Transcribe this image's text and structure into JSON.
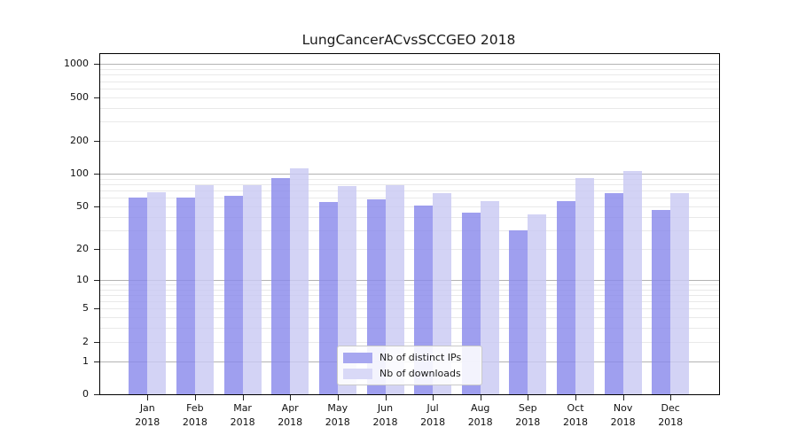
{
  "figure": {
    "title": "LungCancerACvsSCCGEO 2018"
  },
  "legend": {
    "items": [
      {
        "label": "Nb of distinct IPs",
        "color": "#a7a7f0"
      },
      {
        "label": "Nb of downloads",
        "color": "#d9d9f7"
      }
    ]
  },
  "chart_data": {
    "type": "bar",
    "title": "LungCancerACvsSCCGEO 2018",
    "categories": [
      "Jan",
      "Feb",
      "Mar",
      "Apr",
      "May",
      "Jun",
      "Jul",
      "Aug",
      "Sep",
      "Oct",
      "Nov",
      "Dec"
    ],
    "x_tick_year": "2018",
    "series": [
      {
        "name": "Nb of distinct IPs",
        "color": "#a7a7f0",
        "fill": "rgba(138,138,235,0.82)",
        "values": [
          60,
          60,
          63,
          91,
          55,
          58,
          51,
          44,
          30,
          56,
          66,
          46
        ]
      },
      {
        "name": "Nb of downloads",
        "color": "#d9d9f7",
        "fill": "rgba(201,201,243,0.82)",
        "values": [
          68,
          79,
          79,
          113,
          77,
          78,
          66,
          56,
          42,
          92,
          106,
          66
        ]
      }
    ],
    "yscale": "log1p",
    "ylim": [
      0,
      1236
    ],
    "y_tick_values": [
      1000,
      500,
      200,
      100,
      50,
      20,
      10,
      5,
      2,
      1,
      0
    ],
    "y_tick_labels": [
      "1000",
      "500",
      "200",
      "100",
      "50",
      "20",
      "10",
      "5",
      "2",
      "1",
      "0"
    ],
    "y_major_gridlines": [
      1,
      10,
      100,
      1000
    ],
    "y_minor_gridlines": [
      2,
      3,
      4,
      5,
      6,
      7,
      8,
      9,
      20,
      30,
      40,
      50,
      60,
      70,
      80,
      90,
      200,
      300,
      400,
      500,
      600,
      700,
      800,
      900
    ],
    "grid": "on",
    "legend_position": "lower center",
    "colors": {
      "major_grid": "#b3b3b3",
      "minor_grid": "#e9e9e9",
      "spine": "#000000",
      "text": "#1a1a1a"
    }
  }
}
